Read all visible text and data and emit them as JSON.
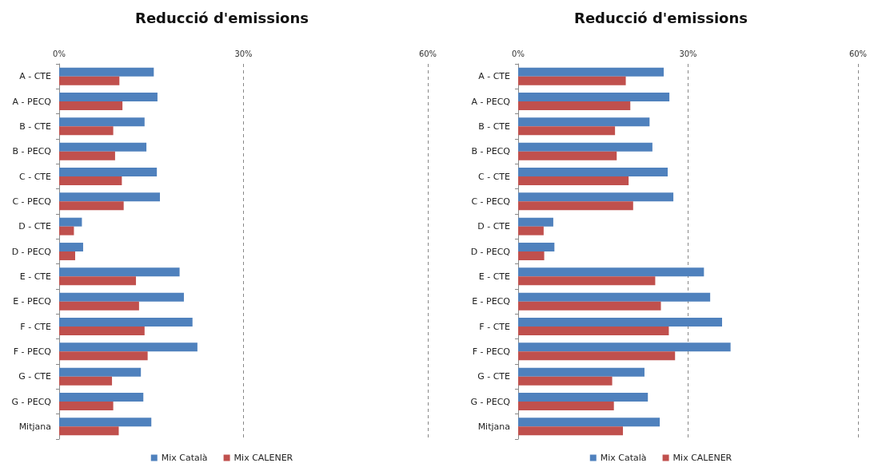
{
  "chart_data": [
    {
      "type": "bar",
      "orientation": "horizontal",
      "title": "Reducció d'emissions",
      "categories": [
        "A - CTE",
        "A - PECQ",
        "B - CTE",
        "B - PECQ",
        "C - CTE",
        "C - PECQ",
        "D - CTE",
        "D - PECQ",
        "E - CTE",
        "E - PECQ",
        "F - CTE",
        "F - PECQ",
        "G - CTE",
        "G - PECQ",
        "Mitjana"
      ],
      "series": [
        {
          "name": "Mix Català",
          "color": "#4f81bd",
          "values": [
            15.4,
            16.0,
            13.9,
            14.2,
            15.9,
            16.4,
            3.7,
            3.9,
            19.6,
            20.3,
            21.7,
            22.5,
            13.3,
            13.7,
            15.0
          ]
        },
        {
          "name": "Mix CALENER",
          "color": "#c0504d",
          "values": [
            9.8,
            10.3,
            8.8,
            9.1,
            10.2,
            10.5,
            2.4,
            2.6,
            12.5,
            13.0,
            13.9,
            14.4,
            8.6,
            8.8,
            9.7
          ]
        }
      ],
      "xlim": [
        0,
        60
      ],
      "xticks": [
        {
          "value": 0,
          "label": "0%"
        },
        {
          "value": 30,
          "label": "30%"
        },
        {
          "value": 60,
          "label": "60%"
        }
      ],
      "grid": "x",
      "legend": "bottom"
    },
    {
      "type": "bar",
      "orientation": "horizontal",
      "title": "Reducció d'emissions",
      "categories": [
        "A - CTE",
        "A - PECQ",
        "B - CTE",
        "B - PECQ",
        "C - CTE",
        "C - PECQ",
        "D - CTE",
        "D - PECQ",
        "E - CTE",
        "E - PECQ",
        "F - CTE",
        "F - PECQ",
        "G - CTE",
        "G - PECQ",
        "Mitjana"
      ],
      "series": [
        {
          "name": "Mix Català",
          "color": "#4f81bd",
          "values": [
            25.7,
            26.7,
            23.2,
            23.7,
            26.4,
            27.4,
            6.2,
            6.4,
            32.8,
            33.9,
            36.0,
            37.5,
            22.3,
            22.9,
            25.0
          ]
        },
        {
          "name": "Mix CALENER",
          "color": "#c0504d",
          "values": [
            19.0,
            19.8,
            17.1,
            17.4,
            19.5,
            20.3,
            4.5,
            4.6,
            24.2,
            25.2,
            26.6,
            27.7,
            16.6,
            16.9,
            18.5
          ]
        }
      ],
      "xlim": [
        0,
        60
      ],
      "xticks": [
        {
          "value": 0,
          "label": "0%"
        },
        {
          "value": 30,
          "label": "30%"
        },
        {
          "value": 60,
          "label": "60%"
        }
      ],
      "grid": "x",
      "legend": "bottom"
    }
  ]
}
